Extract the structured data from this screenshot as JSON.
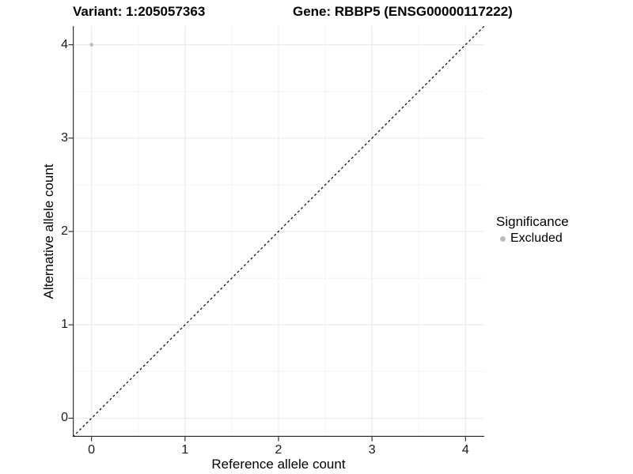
{
  "chart_data": {
    "type": "scatter",
    "titles": {
      "left": "Variant: 1:205057363",
      "right": "Gene: RBBP5 (ENSG00000117222)"
    },
    "xlabel": "Reference allele count",
    "ylabel": "Alternative allele count",
    "xlim": [
      -0.2,
      4.2
    ],
    "ylim": [
      -0.2,
      4.2
    ],
    "xticks": [
      0,
      1,
      2,
      3,
      4
    ],
    "yticks": [
      0,
      1,
      2,
      3,
      4
    ],
    "grid": {
      "major": true,
      "minor": true
    },
    "points": [
      {
        "x": 0,
        "y": 4,
        "series": "Excluded"
      }
    ],
    "reference_line": {
      "type": "identity",
      "from": -0.2,
      "to": 4.2,
      "style": "dashed"
    },
    "legend": {
      "title": "Significance",
      "position": "right",
      "items": [
        {
          "label": "Excluded",
          "color": "#bdbdbd"
        }
      ]
    },
    "colors": {
      "background": "#ffffff",
      "major_grid": "#e7e7e7",
      "minor_grid": "#f3f3f3",
      "axis": "#333333",
      "tick_text": "#1a1a1a",
      "dashed_line": "#000000",
      "point": "#bdbdbd"
    }
  }
}
